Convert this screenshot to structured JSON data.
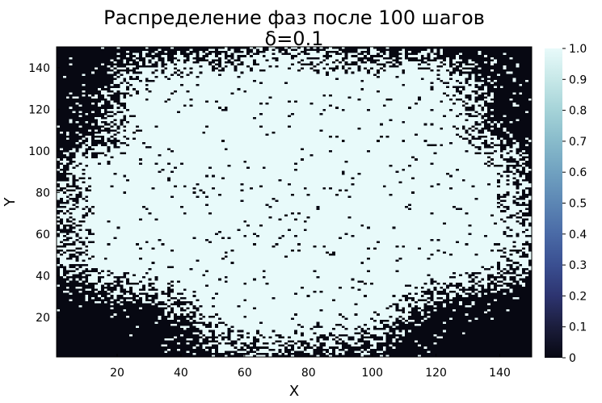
{
  "chart_data": {
    "type": "heatmap",
    "title": "Распределение фаз после 100 шагов",
    "subtitle": "δ=0.1",
    "xlabel": "X",
    "ylabel": "Y",
    "xlim": [
      1,
      150
    ],
    "ylim": [
      1,
      150
    ],
    "x_ticks": [
      20,
      40,
      60,
      80,
      100,
      120,
      140
    ],
    "y_ticks": [
      20,
      40,
      60,
      80,
      100,
      120,
      140
    ],
    "colorbar": {
      "range": [
        0,
        1.0
      ],
      "ticks": [
        "0",
        "0.1",
        "0.2",
        "0.3",
        "0.4",
        "0.5",
        "0.6",
        "0.7",
        "0.8",
        "0.9",
        "1.0"
      ],
      "colors": [
        "#070812",
        "#1b1d3c",
        "#2d3470",
        "#3a4f91",
        "#4a6aa6",
        "#5c86b4",
        "#70a1c0",
        "#88bbcb",
        "#a5d3d8",
        "#c7e8e8",
        "#e8fafa"
      ]
    },
    "grid_size": [
      150,
      150
    ],
    "values": "binary field: phase 1 (light) forms a large central cluster, phase 0 (dark) fills the corners and edges with scattered dark specks inside",
    "cell_colors": {
      "0": "#070812",
      "1": "#e8fafa"
    }
  }
}
